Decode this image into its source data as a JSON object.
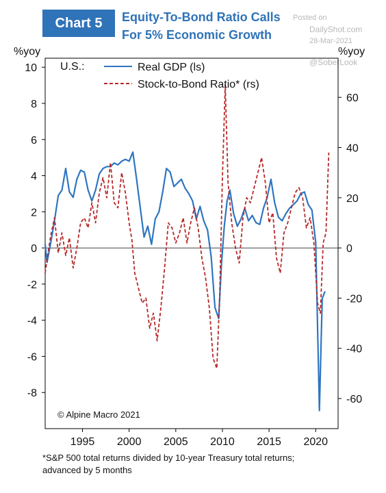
{
  "header": {
    "badge": "Chart 5",
    "title_line1": "Equity-To-Bond Ratio Calls",
    "title_line2": "For 5% Economic Growth"
  },
  "watermark": {
    "posted_on": "Posted on",
    "site": "DailyShot.com",
    "date": "28-Mar-2021",
    "handle": "@SoberLook"
  },
  "footnote": {
    "line1": "*S&P 500 total returns divided by 10-year Treasury total returns;",
    "line2": "advanced by 5 months"
  },
  "chart_data": {
    "type": "line",
    "title": "Equity-To-Bond Ratio Calls For 5% Economic Growth",
    "region_label": "U.S.:",
    "credit": "© Alpine Macro 2021",
    "grid": false,
    "legend_position": "top-left",
    "x_ticks": [
      1995,
      2000,
      2005,
      2010,
      2015,
      2020
    ],
    "xlim": [
      1991.0,
      2022.4
    ],
    "y_left": {
      "label": "%yoy",
      "range": [
        -10,
        10.5
      ],
      "ticks": [
        -8,
        -6,
        -4,
        -2,
        0,
        2,
        4,
        6,
        8,
        10
      ]
    },
    "y_right": {
      "label": "%yoy",
      "range": [
        -72,
        75.6
      ],
      "ticks": [
        -60,
        -40,
        -20,
        0,
        20,
        40,
        60
      ]
    },
    "series": [
      {
        "name": "Real GDP (ls)",
        "axis": "left",
        "color": "#2e75c0",
        "style": "solid",
        "points": [
          [
            1991.0,
            0.2
          ],
          [
            1991.2,
            -0.8
          ],
          [
            1991.6,
            0.3
          ],
          [
            1992.0,
            1.5
          ],
          [
            1992.4,
            2.9
          ],
          [
            1992.8,
            3.2
          ],
          [
            1993.2,
            4.4
          ],
          [
            1993.6,
            3.1
          ],
          [
            1994.0,
            2.8
          ],
          [
            1994.4,
            3.8
          ],
          [
            1994.8,
            4.3
          ],
          [
            1995.2,
            4.2
          ],
          [
            1995.6,
            3.2
          ],
          [
            1996.0,
            2.6
          ],
          [
            1996.4,
            3.2
          ],
          [
            1996.8,
            4.1
          ],
          [
            1997.2,
            4.4
          ],
          [
            1997.6,
            4.5
          ],
          [
            1998.0,
            4.5
          ],
          [
            1998.4,
            4.7
          ],
          [
            1998.8,
            4.6
          ],
          [
            1999.2,
            4.8
          ],
          [
            1999.6,
            4.9
          ],
          [
            2000.0,
            4.8
          ],
          [
            2000.4,
            5.3
          ],
          [
            2000.8,
            3.8
          ],
          [
            2001.2,
            2.2
          ],
          [
            2001.6,
            0.6
          ],
          [
            2002.0,
            1.2
          ],
          [
            2002.4,
            0.2
          ],
          [
            2002.8,
            1.6
          ],
          [
            2003.2,
            2.0
          ],
          [
            2003.6,
            3.1
          ],
          [
            2004.0,
            4.4
          ],
          [
            2004.4,
            4.2
          ],
          [
            2004.8,
            3.4
          ],
          [
            2005.2,
            3.6
          ],
          [
            2005.6,
            3.8
          ],
          [
            2006.0,
            3.3
          ],
          [
            2006.4,
            3.0
          ],
          [
            2006.8,
            2.6
          ],
          [
            2007.2,
            1.6
          ],
          [
            2007.6,
            2.3
          ],
          [
            2008.0,
            1.5
          ],
          [
            2008.4,
            1.0
          ],
          [
            2008.8,
            -0.5
          ],
          [
            2009.2,
            -3.3
          ],
          [
            2009.6,
            -3.9
          ],
          [
            2009.9,
            -0.9
          ],
          [
            2010.2,
            1.2
          ],
          [
            2010.5,
            2.6
          ],
          [
            2010.8,
            3.2
          ],
          [
            2011.2,
            1.9
          ],
          [
            2011.6,
            1.2
          ],
          [
            2012.0,
            1.6
          ],
          [
            2012.4,
            2.2
          ],
          [
            2012.8,
            1.5
          ],
          [
            2013.2,
            1.8
          ],
          [
            2013.6,
            1.4
          ],
          [
            2014.0,
            1.3
          ],
          [
            2014.4,
            2.2
          ],
          [
            2014.8,
            2.8
          ],
          [
            2015.2,
            3.8
          ],
          [
            2015.6,
            2.5
          ],
          [
            2016.0,
            1.7
          ],
          [
            2016.4,
            1.5
          ],
          [
            2016.8,
            1.9
          ],
          [
            2017.2,
            2.2
          ],
          [
            2017.6,
            2.4
          ],
          [
            2018.0,
            2.6
          ],
          [
            2018.4,
            3.0
          ],
          [
            2018.8,
            3.1
          ],
          [
            2019.2,
            2.4
          ],
          [
            2019.6,
            2.1
          ],
          [
            2020.0,
            0.3
          ],
          [
            2020.4,
            -9.0
          ],
          [
            2020.7,
            -2.8
          ],
          [
            2021.0,
            -2.4
          ]
        ]
      },
      {
        "name": "Stock-to-Bond Ratio* (rs)",
        "axis": "right",
        "color": "#b72828",
        "style": "dashed",
        "points": [
          [
            1991.0,
            -10
          ],
          [
            1991.3,
            -2
          ],
          [
            1991.6,
            5
          ],
          [
            1992.0,
            12
          ],
          [
            1992.4,
            -2
          ],
          [
            1992.8,
            6
          ],
          [
            1993.2,
            -3
          ],
          [
            1993.6,
            4
          ],
          [
            1994.0,
            -8
          ],
          [
            1994.4,
            0
          ],
          [
            1994.8,
            10
          ],
          [
            1995.2,
            12
          ],
          [
            1995.6,
            8
          ],
          [
            1996.0,
            18
          ],
          [
            1996.4,
            10
          ],
          [
            1996.8,
            22
          ],
          [
            1997.2,
            28
          ],
          [
            1997.6,
            20
          ],
          [
            1998.0,
            34
          ],
          [
            1998.4,
            18
          ],
          [
            1998.8,
            16
          ],
          [
            1999.2,
            30
          ],
          [
            1999.6,
            22
          ],
          [
            2000.0,
            10
          ],
          [
            2000.3,
            3
          ],
          [
            2000.6,
            -10
          ],
          [
            2001.0,
            -16
          ],
          [
            2001.4,
            -22
          ],
          [
            2001.8,
            -20
          ],
          [
            2002.2,
            -32
          ],
          [
            2002.6,
            -26
          ],
          [
            2003.0,
            -37
          ],
          [
            2003.4,
            -24
          ],
          [
            2003.8,
            -8
          ],
          [
            2004.2,
            10
          ],
          [
            2004.6,
            8
          ],
          [
            2005.0,
            2
          ],
          [
            2005.4,
            6
          ],
          [
            2005.8,
            12
          ],
          [
            2006.2,
            2
          ],
          [
            2006.6,
            10
          ],
          [
            2007.0,
            16
          ],
          [
            2007.4,
            8
          ],
          [
            2007.8,
            -4
          ],
          [
            2008.2,
            -12
          ],
          [
            2008.6,
            -24
          ],
          [
            2009.0,
            -44
          ],
          [
            2009.4,
            -48
          ],
          [
            2009.7,
            -20
          ],
          [
            2010.0,
            28
          ],
          [
            2010.3,
            65
          ],
          [
            2010.6,
            26
          ],
          [
            2011.0,
            10
          ],
          [
            2011.4,
            0
          ],
          [
            2011.8,
            -6
          ],
          [
            2012.2,
            12
          ],
          [
            2012.6,
            20
          ],
          [
            2013.0,
            18
          ],
          [
            2013.4,
            24
          ],
          [
            2013.8,
            30
          ],
          [
            2014.2,
            36
          ],
          [
            2014.6,
            26
          ],
          [
            2015.0,
            10
          ],
          [
            2015.4,
            14
          ],
          [
            2015.8,
            -4
          ],
          [
            2016.2,
            -10
          ],
          [
            2016.6,
            6
          ],
          [
            2017.0,
            10
          ],
          [
            2017.4,
            16
          ],
          [
            2017.8,
            22
          ],
          [
            2018.2,
            24
          ],
          [
            2018.6,
            20
          ],
          [
            2019.0,
            8
          ],
          [
            2019.4,
            12
          ],
          [
            2019.8,
            2
          ],
          [
            2020.2,
            -22
          ],
          [
            2020.5,
            -26
          ],
          [
            2020.8,
            2
          ],
          [
            2021.1,
            6
          ],
          [
            2021.4,
            38
          ]
        ]
      }
    ]
  }
}
